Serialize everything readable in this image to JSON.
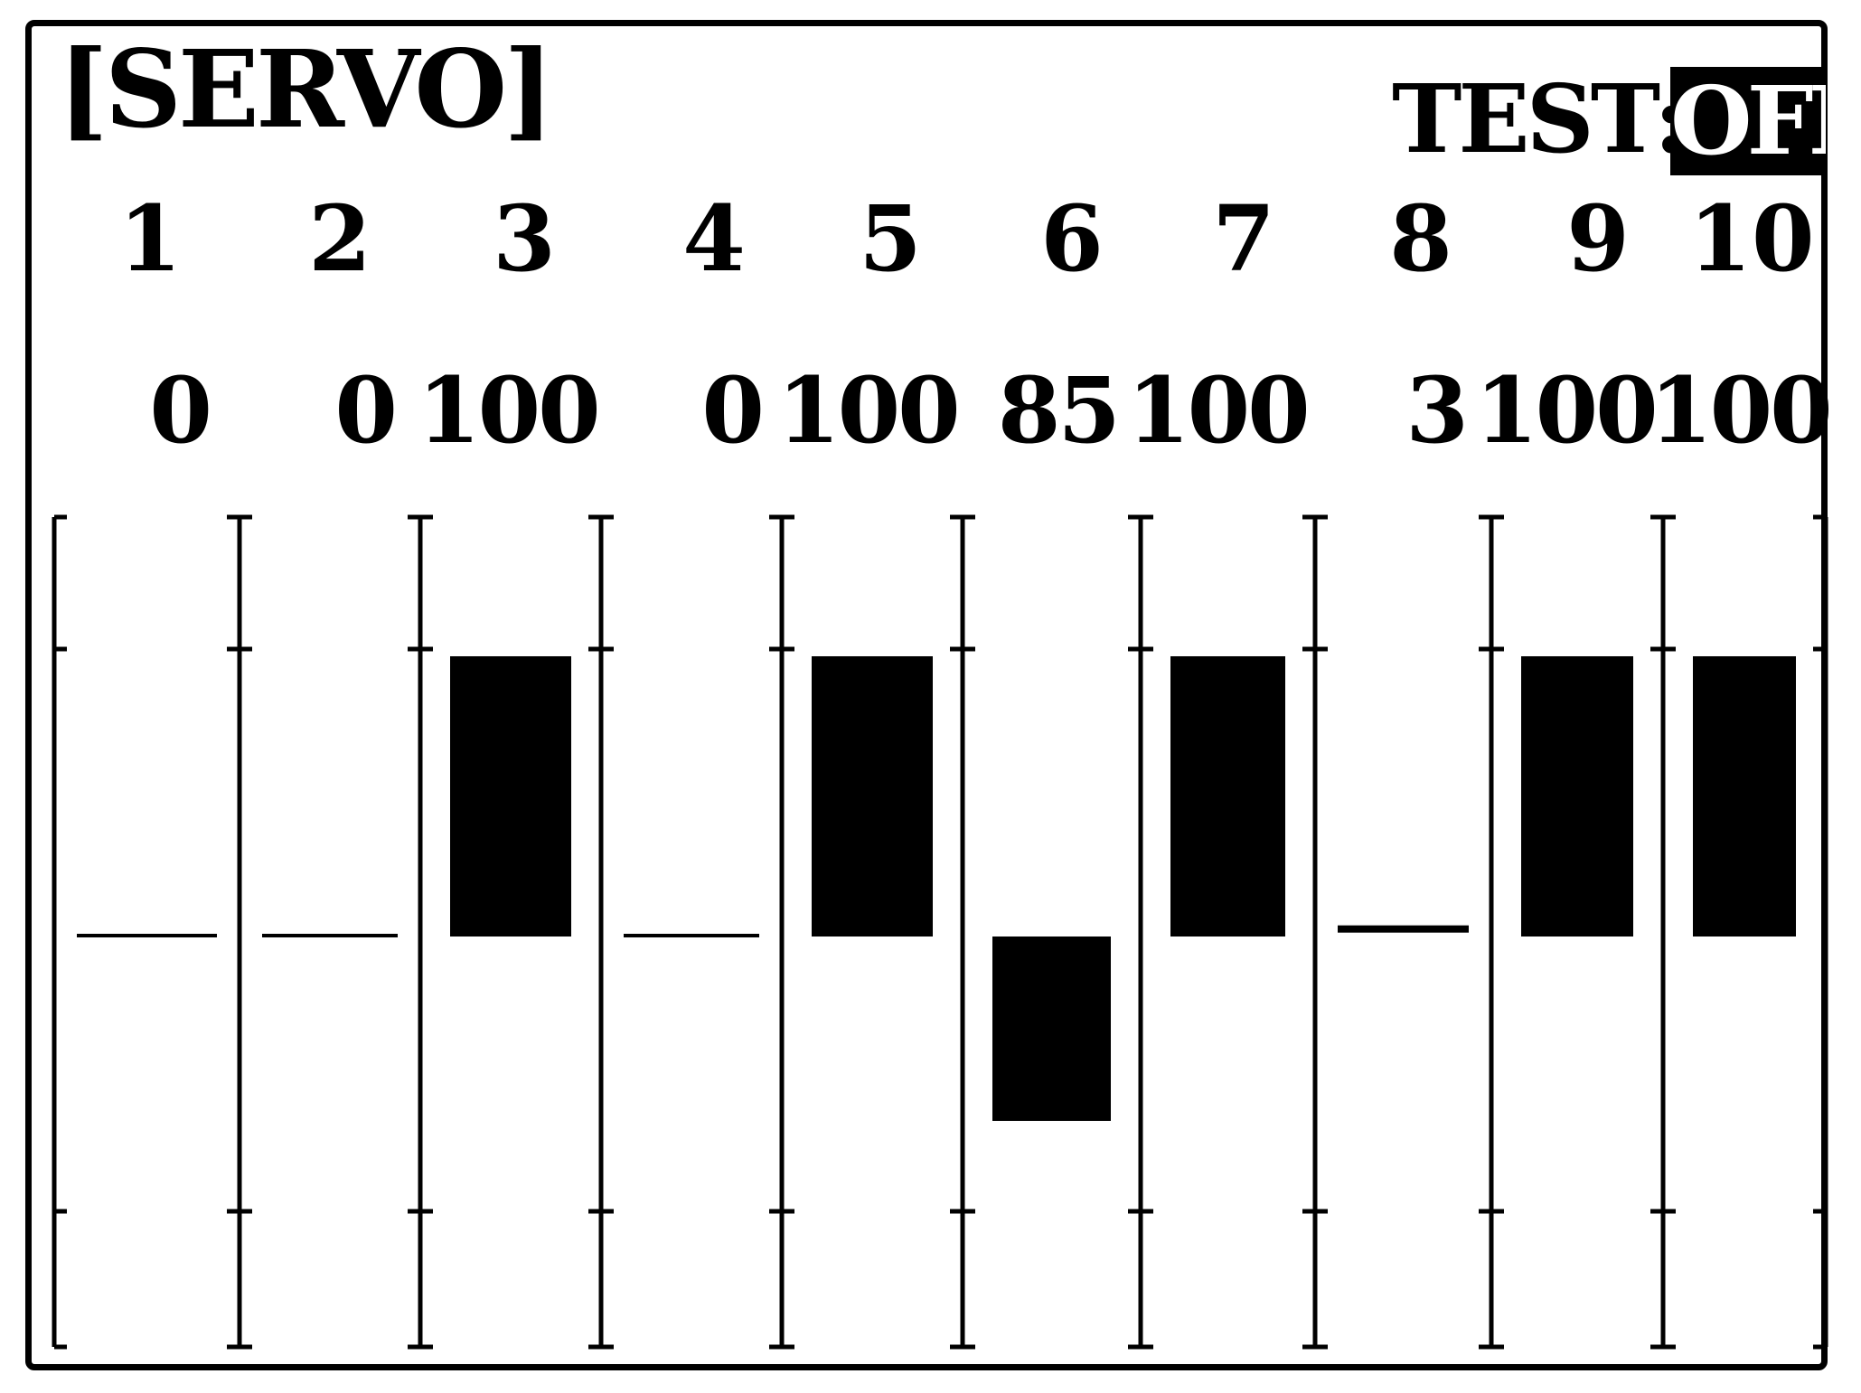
{
  "screen": {
    "title": "[SERVO]",
    "test_label": "TEST:",
    "test_state": "OFF"
  },
  "channels": [
    {
      "number": "1",
      "value": "0",
      "level": 0
    },
    {
      "number": "2",
      "value": "0",
      "level": 0
    },
    {
      "number": "3",
      "value": "100",
      "level": 100
    },
    {
      "number": "4",
      "value": "0",
      "level": 0
    },
    {
      "number": "5",
      "value": "100",
      "level": 100
    },
    {
      "number": "6",
      "value": "85",
      "level": -85
    },
    {
      "number": "7",
      "value": "100",
      "level": 100
    },
    {
      "number": "8",
      "value": "3",
      "level": 3
    },
    {
      "number": "9",
      "value": "100",
      "level": 100
    },
    {
      "number": "10",
      "value": "100",
      "level": 100
    }
  ],
  "colors": {
    "ink": "#000000",
    "background": "#ffffff"
  }
}
